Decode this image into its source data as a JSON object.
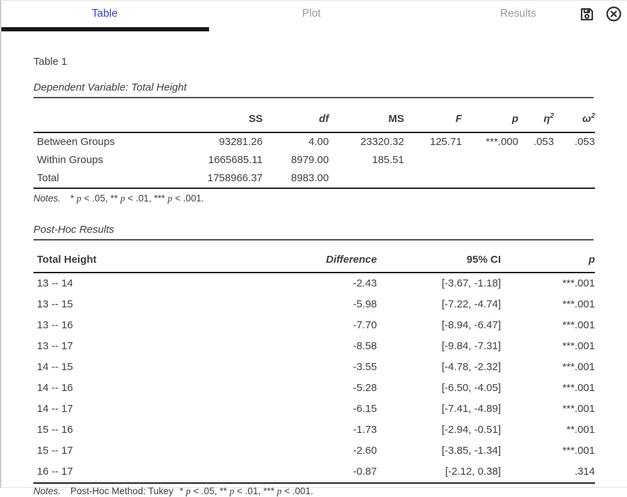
{
  "tabs": {
    "table": "Table",
    "plot": "Plot",
    "results": "Results"
  },
  "icons": {
    "save": "floppy-disk",
    "close": "circle-x"
  },
  "colors": {
    "accent": "#3c3ce0",
    "inactive_tab": "#9b9b9b",
    "underline": "#161616",
    "text": "#3d3d3d",
    "rule_dark": "#1e1e1e",
    "rule_mid": "#4f4f4f",
    "icon": "#2b2b2b",
    "window_border": "#cfcfcf"
  },
  "sig": {
    "s1": "* ",
    "p": "p",
    "s2": " < .05, ** ",
    "s3": " < .01, *** ",
    "s4": " < .001."
  },
  "table1": {
    "title": "Table 1",
    "subtitle": "Dependent Variable: Total Height",
    "anova": {
      "headers": {
        "ss": "SS",
        "df": "df",
        "ms": "MS",
        "f": "F",
        "p": "p",
        "eta": {
          "symbol": "η",
          "sup": "2"
        },
        "omega": {
          "symbol": "ω",
          "sup": "2"
        }
      },
      "rows": [
        {
          "label": "Between Groups",
          "ss": "93281.26",
          "df": "4.00",
          "ms": "23320.32",
          "f": "125.71",
          "p": "***.000",
          "eta": ".053",
          "omega": ".053"
        },
        {
          "label": "Within Groups",
          "ss": "1665685.11",
          "df": "8979.00",
          "ms": "185.51",
          "f": "",
          "p": "",
          "eta": "",
          "omega": ""
        },
        {
          "label": "Total",
          "ss": "1758966.37",
          "df": "8983.00",
          "ms": "",
          "f": "",
          "p": "",
          "eta": "",
          "omega": ""
        }
      ],
      "notes_label": "Notes."
    }
  },
  "posthoc": {
    "title": "Post-Hoc Results",
    "table": {
      "headers": {
        "pair": "Total Height",
        "diff": "Difference",
        "ci": "95% CI",
        "p": "p"
      },
      "rows": [
        {
          "pair": "13 -- 14",
          "diff": "-2.43",
          "ci": "[-3.67, -1.18]",
          "p": "***.001"
        },
        {
          "pair": "13 -- 15",
          "diff": "-5.98",
          "ci": "[-7.22, -4.74]",
          "p": "***.001"
        },
        {
          "pair": "13 -- 16",
          "diff": "-7.70",
          "ci": "[-8.94, -6.47]",
          "p": "***.001"
        },
        {
          "pair": "13 -- 17",
          "diff": "-8.58",
          "ci": "[-9.84, -7.31]",
          "p": "***.001"
        },
        {
          "pair": "14 -- 15",
          "diff": "-3.55",
          "ci": "[-4.78, -2.32]",
          "p": "***.001"
        },
        {
          "pair": "14 -- 16",
          "diff": "-5.28",
          "ci": "[-6.50, -4.05]",
          "p": "***.001"
        },
        {
          "pair": "14 -- 17",
          "diff": "-6.15",
          "ci": "[-7.41, -4.89]",
          "p": "***.001"
        },
        {
          "pair": "15 -- 16",
          "diff": "-1.73",
          "ci": "[-2.94, -0.51]",
          "p": "**.001"
        },
        {
          "pair": "15 -- 17",
          "diff": "-2.60",
          "ci": "[-3.85, -1.34]",
          "p": "***.001"
        },
        {
          "pair": "16 -- 17",
          "diff": "-0.87",
          "ci": "[-2.12, 0.38]",
          "p": ".314"
        }
      ]
    },
    "notes_label": "Notes.",
    "method": "Post-Hoc Method: Tukey"
  }
}
